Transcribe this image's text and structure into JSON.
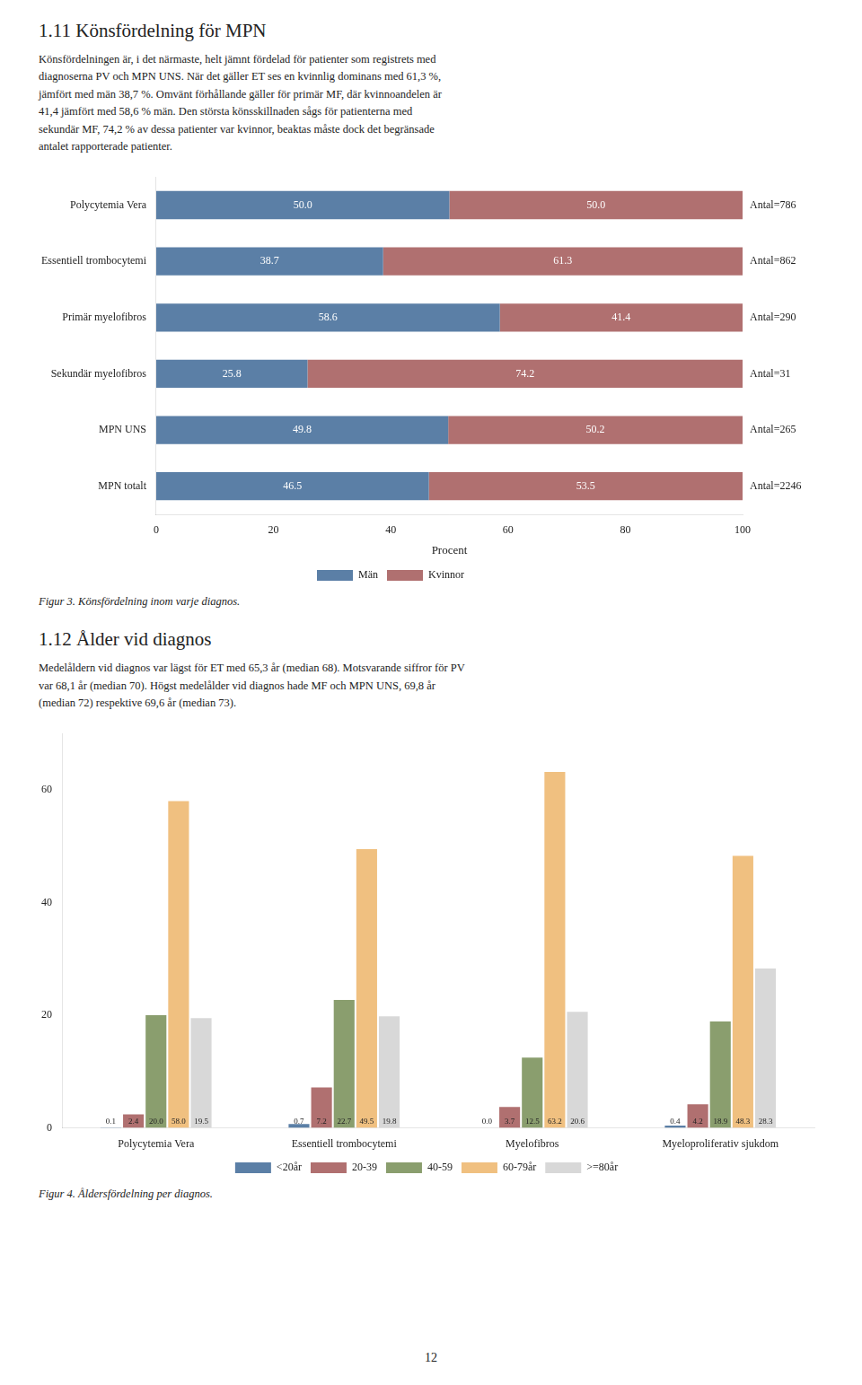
{
  "chart_data": [
    {
      "type": "bar",
      "orientation": "horizontal",
      "stacked": true,
      "title": "1.11  Könsfördelning för MPN",
      "subtitle": "Könsfördelningen är, i det närmaste, helt jämnt fördelad för patienter som registrets med\ndiagnoserna PV och MPN UNS. När det gäller ET ses en kvinnlig dominans med 61,3 %,\njämfört med män 38,7 %. Omvänt förhållande gäller för primär MF, där kvinnoandelen är\n41,4 jämfört med 58,6 % män. Den största könsskillnaden sågs för patienterna med\nsekundär MF, 74,2 % av dessa patienter var kvinnor, beaktas måste dock det begränsade\nantalet rapporterade patienter.",
      "categories": [
        "Polycytemia Vera",
        "Essentiell trombocytemi",
        "Primär myelofibros",
        "Sekundär myelofibros",
        "MPN UNS",
        "MPN totalt"
      ],
      "series": [
        {
          "name": "Män",
          "color": "#5b7fa6",
          "values": [
            50.0,
            38.7,
            58.6,
            25.8,
            49.8,
            46.5
          ],
          "value_labels": [
            "50.0",
            "38.7",
            "58.6",
            "25.8",
            "49.8",
            "46.5"
          ]
        },
        {
          "name": "Kvinnor",
          "color": "#b07070",
          "values": [
            50.0,
            61.3,
            41.4,
            74.2,
            50.2,
            53.5
          ],
          "value_labels": [
            "50.0",
            "61.3",
            "41.4",
            "74.2",
            "50.2",
            "53.5"
          ]
        }
      ],
      "xlabel": "Procent",
      "xlim": [
        0,
        100
      ],
      "xticks": [
        0,
        20,
        40,
        60,
        80,
        100
      ],
      "grid": false,
      "legend": "bottom",
      "data_labels": true,
      "annotations": [
        {
          "text": "Antal=786",
          "category": "Polycytemia Vera"
        },
        {
          "text": "Antal=862",
          "category": "Essentiell trombocytemi"
        },
        {
          "text": "Antal=290",
          "category": "Primär myelofibros"
        },
        {
          "text": "Antal=31",
          "category": "Sekundär myelofibros"
        },
        {
          "text": "Antal=265",
          "category": "MPN UNS"
        },
        {
          "text": "Antal=2246",
          "category": "MPN totalt"
        },
        {
          "text": "Figur 3. Könsfördelning inom varje diagnos."
        }
      ]
    },
    {
      "type": "bar",
      "title": "1.12  Ålder vid diagnos",
      "subtitle": "Medelåldern vid diagnos var lägst för ET med 65,3 år (median 68). Motsvarande siffror för PV\nvar 68,1 år (median 70). Högst medelålder vid diagnos hade MF och MPN UNS, 69,8 år\n(median 72) respektive 69,6 år (median 73).",
      "categories": [
        "Polycytemia Vera",
        "Essentiell trombocytemi",
        "Myelofibros",
        "Myeloproliferativ sjukdom"
      ],
      "series": [
        {
          "name": "<20år",
          "color": "#5b7fa6",
          "values": [
            0.1,
            0.7,
            0.0,
            0.4
          ],
          "value_labels": [
            "0.1",
            "0.7",
            "0.0",
            "0.4"
          ]
        },
        {
          "name": "20-39",
          "color": "#b07070",
          "values": [
            2.4,
            7.2,
            3.7,
            4.2
          ],
          "value_labels": [
            "2.4",
            "7.2",
            "3.7",
            "4.2"
          ]
        },
        {
          "name": "40-59",
          "color": "#8a9e6e",
          "values": [
            20.0,
            22.7,
            12.5,
            18.9
          ],
          "value_labels": [
            "20.0",
            "22.7",
            "12.5",
            "18.9"
          ]
        },
        {
          "name": "60-79år",
          "color": "#f0c080",
          "values": [
            58.0,
            49.5,
            63.2,
            48.3
          ],
          "value_labels": [
            "58.0",
            "49.5",
            "63.2",
            "48.3"
          ]
        },
        {
          "name": ">=80år",
          "color": "#d8d8d8",
          "values": [
            19.5,
            19.8,
            20.6,
            28.3
          ],
          "value_labels": [
            "19.5",
            "19.8",
            "20.6",
            "28.3"
          ]
        }
      ],
      "ylim": [
        0,
        70
      ],
      "yticks": [
        0,
        20,
        40,
        60
      ],
      "grid": false,
      "legend": "bottom",
      "data_labels": true,
      "annotations": [
        {
          "text": "Figur 4. Åldersfördelning per diagnos."
        },
        {
          "text": "12"
        }
      ]
    }
  ]
}
